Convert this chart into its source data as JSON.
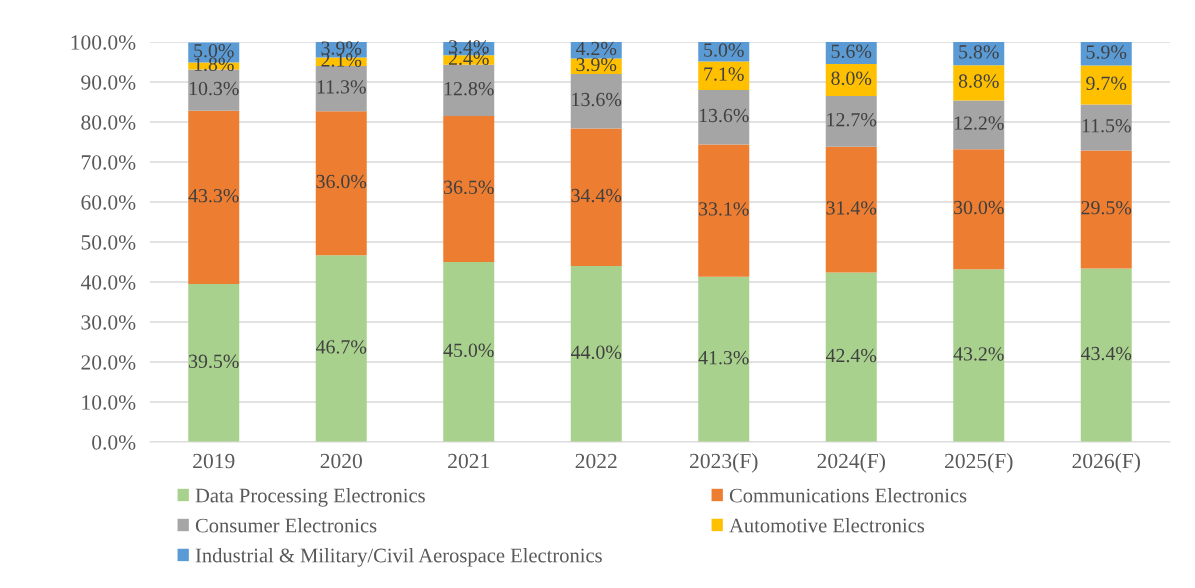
{
  "chart_data": {
    "type": "bar",
    "stacked": true,
    "categories": [
      "2019",
      "2020",
      "2021",
      "2022",
      "2023(F)",
      "2024(F)",
      "2025(F)",
      "2026(F)"
    ],
    "series": [
      {
        "name": "Data Processing Electronics",
        "color": "#a9d18e",
        "values": [
          39.5,
          46.7,
          45.0,
          44.0,
          41.3,
          42.4,
          43.2,
          43.4
        ],
        "value_labels": [
          "39.5%",
          "46.7%",
          "45.0%",
          "44.0%",
          "41.3%",
          "42.4%",
          "43.2%",
          "43.4%"
        ]
      },
      {
        "name": "Communications Electronics",
        "color": "#ed7d31",
        "values": [
          43.3,
          36.0,
          36.5,
          34.4,
          33.1,
          31.4,
          30.0,
          29.5
        ],
        "value_labels": [
          "43.3%",
          "36.0%",
          "36.5%",
          "34.4%",
          "33.1%",
          "31.4%",
          "30.0%",
          "29.5%"
        ]
      },
      {
        "name": "Consumer Electronics",
        "color": "#a5a5a5",
        "values": [
          10.3,
          11.3,
          12.8,
          13.6,
          13.6,
          12.7,
          12.2,
          11.5
        ],
        "value_labels": [
          "10.3%",
          "11.3%",
          "12.8%",
          "13.6%",
          "13.6%",
          "12.7%",
          "12.2%",
          "11.5%"
        ]
      },
      {
        "name": "Automotive Electronics",
        "color": "#ffc000",
        "values": [
          1.8,
          2.1,
          2.4,
          3.9,
          7.1,
          8.0,
          8.8,
          9.7
        ],
        "value_labels": [
          "1.8%",
          "2.1%",
          "2.4%",
          "3.9%",
          "7.1%",
          "8.0%",
          "8.8%",
          "9.7%"
        ]
      },
      {
        "name": "Industrial & Military/Civil Aerospace Electronics",
        "color": "#5b9bd5",
        "values": [
          5.0,
          3.9,
          3.4,
          4.2,
          5.0,
          5.6,
          5.8,
          5.9
        ],
        "value_labels": [
          "5.0%",
          "3.9%",
          "3.4%",
          "4.2%",
          "5.0%",
          "5.6%",
          "5.8%",
          "5.9%"
        ]
      }
    ],
    "ylim": [
      0,
      100
    ],
    "yticks": [
      {
        "value": 0,
        "label": "0.0%"
      },
      {
        "value": 10,
        "label": "10.0%"
      },
      {
        "value": 20,
        "label": "20.0%"
      },
      {
        "value": 30,
        "label": "30.0%"
      },
      {
        "value": 40,
        "label": "40.0%"
      },
      {
        "value": 50,
        "label": "50.0%"
      },
      {
        "value": 60,
        "label": "60.0%"
      },
      {
        "value": 70,
        "label": "70.0%"
      },
      {
        "value": 80,
        "label": "80.0%"
      },
      {
        "value": 90,
        "label": "90.0%"
      },
      {
        "value": 100,
        "label": "100.0%"
      }
    ],
    "grid": "y",
    "legend": "bottom"
  }
}
